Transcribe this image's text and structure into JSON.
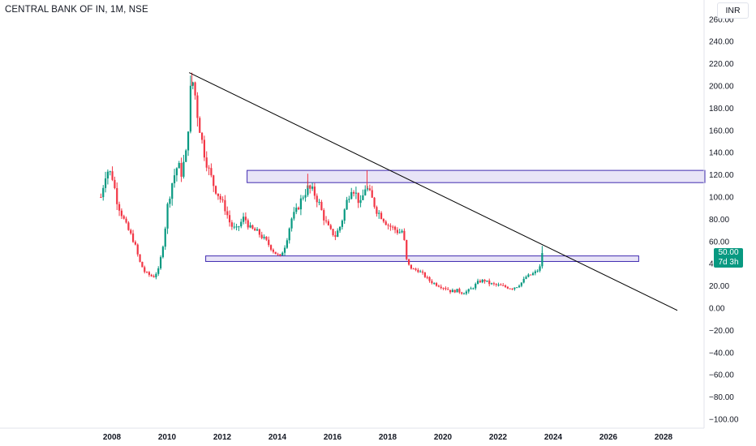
{
  "header": {
    "symbol_title": "CENTRAL BANK OF IN, 1M, NSE",
    "currency": "INR"
  },
  "price_badge": {
    "price": "50.00",
    "countdown": "7d 3h",
    "color": "#089981"
  },
  "colors": {
    "up": "#089981",
    "down": "#f23645",
    "zone_fill": "#e8e4f7",
    "zone_border": "#3f2ab0",
    "trendline": "#000000"
  },
  "chart_data": {
    "type": "candlestick",
    "timeframe": "1M",
    "y_ticks": [
      260,
      240,
      220,
      200,
      180,
      160,
      140,
      120,
      100,
      80,
      60,
      40,
      20,
      0,
      -20,
      -40,
      -60,
      -80,
      -100
    ],
    "y_tick_labels": [
      "260.00",
      "240.00",
      "220.00",
      "200.00",
      "180.00",
      "160.00",
      "140.00",
      "120.00",
      "100.00",
      "80.00",
      "60.00",
      "40.00",
      "20.00",
      "0.00",
      "−20.00",
      "−40.00",
      "−60.00",
      "−80.00",
      "−100.00"
    ],
    "x_ticks": [
      2008,
      2010,
      2012,
      2014,
      2016,
      2018,
      2020,
      2022,
      2024,
      2026,
      2028
    ],
    "ylim": [
      -100,
      265
    ],
    "xlim": [
      2007.0,
      2029.5
    ],
    "last_price": 50.0,
    "price_path": [
      [
        2007.6,
        100
      ],
      [
        2007.8,
        125
      ],
      [
        2008.0,
        120
      ],
      [
        2008.2,
        95
      ],
      [
        2008.5,
        75
      ],
      [
        2008.8,
        60
      ],
      [
        2009.0,
        42
      ],
      [
        2009.2,
        32
      ],
      [
        2009.5,
        28
      ],
      [
        2009.7,
        35
      ],
      [
        2009.9,
        65
      ],
      [
        2010.0,
        90
      ],
      [
        2010.2,
        115
      ],
      [
        2010.4,
        130
      ],
      [
        2010.5,
        120
      ],
      [
        2010.7,
        140
      ],
      [
        2010.85,
        195
      ],
      [
        2010.95,
        205
      ],
      [
        2011.1,
        175
      ],
      [
        2011.3,
        145
      ],
      [
        2011.5,
        125
      ],
      [
        2011.7,
        110
      ],
      [
        2011.9,
        100
      ],
      [
        2012.1,
        90
      ],
      [
        2012.3,
        75
      ],
      [
        2012.5,
        70
      ],
      [
        2012.8,
        82
      ],
      [
        2013.0,
        72
      ],
      [
        2013.3,
        68
      ],
      [
        2013.6,
        60
      ],
      [
        2013.9,
        50
      ],
      [
        2014.1,
        46
      ],
      [
        2014.3,
        58
      ],
      [
        2014.5,
        80
      ],
      [
        2014.7,
        88
      ],
      [
        2014.9,
        100
      ],
      [
        2015.1,
        108
      ],
      [
        2015.3,
        105
      ],
      [
        2015.5,
        95
      ],
      [
        2015.7,
        80
      ],
      [
        2015.9,
        70
      ],
      [
        2016.1,
        65
      ],
      [
        2016.3,
        75
      ],
      [
        2016.5,
        95
      ],
      [
        2016.7,
        110
      ],
      [
        2016.9,
        100
      ],
      [
        2017.0,
        92
      ],
      [
        2017.2,
        110
      ],
      [
        2017.4,
        100
      ],
      [
        2017.6,
        88
      ],
      [
        2017.8,
        82
      ],
      [
        2018.0,
        75
      ],
      [
        2018.2,
        72
      ],
      [
        2018.4,
        68
      ],
      [
        2018.55,
        70
      ],
      [
        2018.7,
        40
      ],
      [
        2018.9,
        35
      ],
      [
        2019.1,
        34
      ],
      [
        2019.3,
        30
      ],
      [
        2019.5,
        25
      ],
      [
        2019.7,
        22
      ],
      [
        2019.9,
        20
      ],
      [
        2020.1,
        18
      ],
      [
        2020.3,
        15
      ],
      [
        2020.5,
        16
      ],
      [
        2020.7,
        14
      ],
      [
        2020.9,
        15
      ],
      [
        2021.1,
        19
      ],
      [
        2021.3,
        24
      ],
      [
        2021.5,
        25
      ],
      [
        2021.7,
        22
      ],
      [
        2021.9,
        21
      ],
      [
        2022.1,
        20
      ],
      [
        2022.3,
        19
      ],
      [
        2022.5,
        18
      ],
      [
        2022.7,
        20
      ],
      [
        2022.9,
        24
      ],
      [
        2023.0,
        28
      ],
      [
        2023.2,
        30
      ],
      [
        2023.4,
        33
      ],
      [
        2023.55,
        38
      ],
      [
        2023.6,
        50
      ]
    ],
    "zones": [
      {
        "x0": 2012.9,
        "x1": 2029.5,
        "y0": 113,
        "y1": 124
      },
      {
        "x0": 2011.4,
        "x1": 2027.1,
        "y0": 42,
        "y1": 47
      }
    ],
    "trendline": {
      "x0": 2010.8,
      "y0": 212,
      "x1": 2028.5,
      "y1": -2
    }
  }
}
